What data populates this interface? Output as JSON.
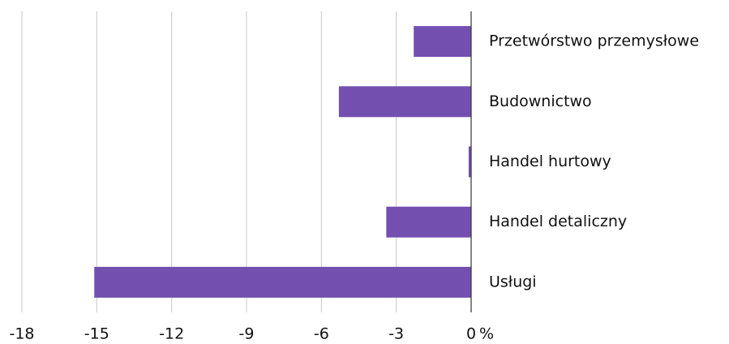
{
  "chart_data": {
    "type": "bar",
    "orientation": "horizontal",
    "categories": [
      "Przetwórstwo przemysłowe",
      "Budownictwo",
      "Handel hurtowy",
      "Handel detaliczny",
      "Usługi"
    ],
    "values": [
      -2.3,
      -5.3,
      -0.1,
      -3.4,
      -15.1
    ],
    "color": "#7350b0",
    "xlim": [
      -18,
      0
    ],
    "xticks": [
      -18,
      -15,
      -12,
      -9,
      -6,
      -3,
      0
    ],
    "x_label": "%",
    "grid": true
  }
}
